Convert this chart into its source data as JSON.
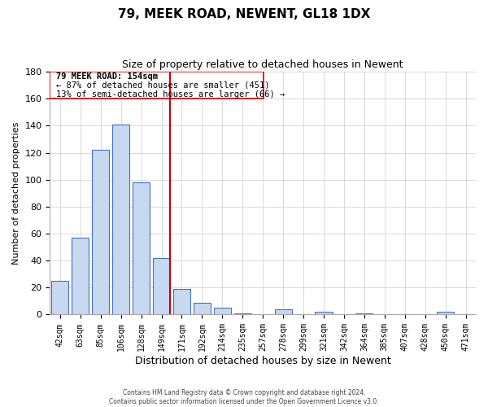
{
  "title": "79, MEEK ROAD, NEWENT, GL18 1DX",
  "subtitle": "Size of property relative to detached houses in Newent",
  "xlabel": "Distribution of detached houses by size in Newent",
  "ylabel": "Number of detached properties",
  "bar_labels": [
    "42sqm",
    "63sqm",
    "85sqm",
    "106sqm",
    "128sqm",
    "149sqm",
    "171sqm",
    "192sqm",
    "214sqm",
    "235sqm",
    "257sqm",
    "278sqm",
    "299sqm",
    "321sqm",
    "342sqm",
    "364sqm",
    "385sqm",
    "407sqm",
    "428sqm",
    "450sqm",
    "471sqm"
  ],
  "bar_values": [
    25,
    57,
    122,
    141,
    98,
    42,
    19,
    9,
    5,
    1,
    0,
    4,
    0,
    2,
    0,
    1,
    0,
    0,
    0,
    2,
    0
  ],
  "bar_color": "#c6d9f0",
  "bar_edge_color": "#4472c4",
  "vline_x_index": 5,
  "vline_color": "#cc0000",
  "ylim": [
    0,
    180
  ],
  "yticks": [
    0,
    20,
    40,
    60,
    80,
    100,
    120,
    140,
    160,
    180
  ],
  "annotation_title": "79 MEEK ROAD: 154sqm",
  "annotation_line1": "← 87% of detached houses are smaller (451)",
  "annotation_line2": "13% of semi-detached houses are larger (66) →",
  "footer_line1": "Contains HM Land Registry data © Crown copyright and database right 2024.",
  "footer_line2": "Contains public sector information licensed under the Open Government Licence v3.0.",
  "background_color": "#ffffff",
  "grid_color": "#cccccc"
}
